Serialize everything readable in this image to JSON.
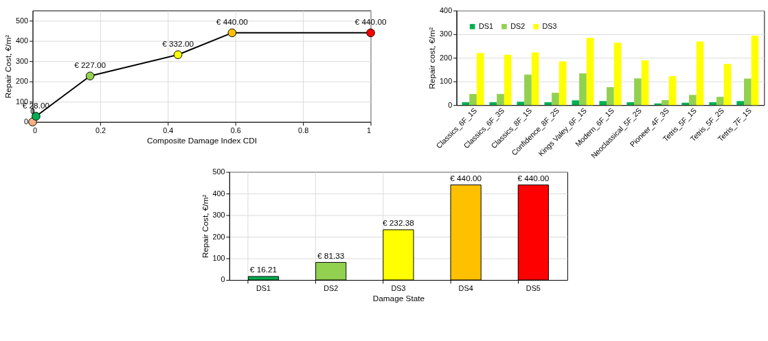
{
  "chart_data": [
    {
      "type": "line",
      "xlabel": "Composite Damage Index CDI",
      "ylabel": "Repair Cost, €/m²",
      "x": [
        0,
        0.01,
        0.17,
        0.43,
        0.59,
        1
      ],
      "values": [
        0,
        28,
        227,
        332,
        440,
        440
      ],
      "color": "#000000",
      "colors": [
        "#f4b183",
        "#00b050",
        "#92d050",
        "#ffff00",
        "#ffc000",
        "#ff0000"
      ],
      "value_labels": [
        "0",
        "€ 28.00",
        "€ 227.00",
        "€ 332.00",
        "€ 440.00",
        "€ 440.00"
      ],
      "marker": "circle",
      "line_style": "solid",
      "xlim": [
        0,
        1
      ],
      "ylim": [
        0,
        550
      ],
      "xticks": [
        0,
        0.2,
        0.4,
        0.6,
        0.8,
        1
      ],
      "yticks": [
        0,
        100,
        200,
        300,
        400,
        500
      ],
      "grid": true
    },
    {
      "type": "bar",
      "ylabel": "Repair cost, €/m²",
      "categories": [
        "Classics_6F_1S",
        "Classics_6F_3S",
        "Classics_8F_1S",
        "Confidence_8F_2S",
        "Kings Valey_6F_1S",
        "Modern_6F_1S",
        "Neoclassical_5F_2S",
        "Pioneer_4F_3S",
        "Tetris_5F_1S",
        "Tetris_5F_2S",
        "Tetris_7F_1S"
      ],
      "series": [
        {
          "name": "DS1",
          "color": "#00b050",
          "values": [
            12,
            12,
            14,
            12,
            20,
            17,
            12,
            7,
            10,
            12,
            17
          ]
        },
        {
          "name": "DS2",
          "color": "#92d050",
          "values": [
            47,
            47,
            129,
            52,
            134,
            76,
            113,
            21,
            43,
            35,
            112
          ]
        },
        {
          "name": "DS3",
          "color": "#ffff00",
          "values": [
            220,
            213,
            223,
            185,
            284,
            264,
            189,
            122,
            269,
            174,
            294
          ]
        }
      ],
      "ylim": [
        0,
        400
      ],
      "yticks": [
        0,
        100,
        200,
        300,
        400
      ],
      "grid": "y",
      "legend": "top left"
    },
    {
      "type": "bar",
      "xlabel": "Damage State",
      "ylabel": "Repair Cost, €/m²",
      "categories": [
        "DS1",
        "DS2",
        "DS3",
        "DS4",
        "DS5"
      ],
      "values": [
        16.21,
        81.33,
        232.38,
        440,
        440
      ],
      "colors": [
        "#00b050",
        "#92d050",
        "#ffff00",
        "#ffc000",
        "#ff0000"
      ],
      "value_labels": [
        "€ 16.21",
        "€ 81.33",
        "€ 232.38",
        "€ 440.00",
        "€ 440.00"
      ],
      "ylim": [
        0,
        500
      ],
      "yticks": [
        0,
        100,
        200,
        300,
        400,
        500
      ],
      "grid": true
    }
  ]
}
